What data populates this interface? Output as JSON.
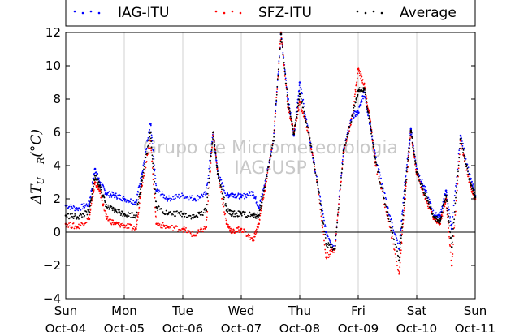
{
  "chart_data": {
    "type": "scatter",
    "ylabel": "ΔT",
    "ylabel_sub": "U − R",
    "ylabel_unit": "(°C)",
    "ylim": [
      -4,
      12
    ],
    "yticks": [
      -4,
      -2,
      0,
      2,
      4,
      6,
      8,
      10,
      12
    ],
    "xlim": [
      0,
      7
    ],
    "xticks": [
      {
        "x": 0,
        "day": "Sun",
        "date": "Oct-04"
      },
      {
        "x": 1,
        "day": "Mon",
        "date": "Oct-05"
      },
      {
        "x": 2,
        "day": "Tue",
        "date": "Oct-06"
      },
      {
        "x": 3,
        "day": "Wed",
        "date": "Oct-07"
      },
      {
        "x": 4,
        "day": "Thu",
        "date": "Oct-08"
      },
      {
        "x": 5,
        "day": "Fri",
        "date": "Oct-09"
      },
      {
        "x": 6,
        "day": "Sat",
        "date": "Oct-10"
      },
      {
        "x": 7,
        "day": "Sun",
        "date": "Oct-11"
      }
    ],
    "grid": "vertical",
    "zero_line": true,
    "legend_position": "top",
    "watermark": [
      "Grupo de Micrometeorologia",
      "IAG-USP"
    ],
    "series": [
      {
        "name": "IAG-ITU",
        "color": "#0000ff",
        "x": [
          0,
          0.2,
          0.4,
          0.5,
          0.58,
          0.7,
          0.85,
          1.0,
          1.2,
          1.3,
          1.45,
          1.55,
          1.75,
          2.0,
          2.2,
          2.4,
          2.52,
          2.6,
          2.75,
          2.85,
          3.0,
          3.2,
          3.3,
          3.4,
          3.55,
          3.68,
          3.8,
          3.9,
          4.0,
          4.15,
          4.3,
          4.45,
          4.6,
          4.75,
          4.9,
          5.0,
          5.1,
          5.2,
          5.3,
          5.5,
          5.7,
          5.8,
          5.9,
          6.0,
          6.15,
          6.3,
          6.4,
          6.5,
          6.6,
          6.75,
          6.9,
          7.0
        ],
        "y": [
          1.6,
          1.4,
          1.7,
          3.8,
          3.0,
          2.3,
          2.2,
          2.0,
          1.8,
          3.5,
          6.5,
          2.5,
          2.0,
          2.2,
          2.0,
          2.3,
          6.0,
          3.5,
          2.2,
          2.3,
          2.1,
          2.4,
          1.5,
          2.8,
          5.5,
          11.9,
          8.0,
          5.8,
          9.0,
          6.0,
          3.0,
          0.0,
          -1.0,
          5.0,
          7.0,
          7.2,
          8.4,
          6.5,
          4.5,
          1.5,
          -1.0,
          3.0,
          6.2,
          3.8,
          2.5,
          1.0,
          1.0,
          2.5,
          0.2,
          5.8,
          3.5,
          2.2
        ]
      },
      {
        "name": "SFZ-ITU",
        "color": "#ff0000",
        "x": [
          0,
          0.2,
          0.4,
          0.5,
          0.58,
          0.7,
          0.85,
          1.0,
          1.2,
          1.3,
          1.45,
          1.55,
          1.75,
          2.0,
          2.2,
          2.4,
          2.52,
          2.6,
          2.75,
          2.85,
          3.0,
          3.2,
          3.3,
          3.4,
          3.55,
          3.68,
          3.8,
          3.9,
          4.0,
          4.15,
          4.3,
          4.45,
          4.6,
          4.75,
          4.9,
          5.0,
          5.1,
          5.2,
          5.3,
          5.5,
          5.7,
          5.8,
          5.9,
          6.0,
          6.15,
          6.3,
          6.4,
          6.5,
          6.6,
          6.75,
          6.9,
          7.0
        ],
        "y": [
          0.5,
          0.3,
          0.8,
          3.0,
          2.5,
          0.8,
          0.5,
          0.4,
          0.2,
          2.8,
          5.5,
          0.5,
          0.3,
          0.2,
          -0.2,
          0.3,
          6.0,
          3.5,
          0.5,
          0.0,
          0.2,
          -0.5,
          0.5,
          2.5,
          5.5,
          12.0,
          7.5,
          6.0,
          7.8,
          6.0,
          3.0,
          -1.5,
          -1.0,
          4.8,
          7.0,
          9.8,
          8.9,
          6.8,
          4.0,
          1.0,
          -2.5,
          2.0,
          6.0,
          3.5,
          2.0,
          0.8,
          0.5,
          2.0,
          -2.0,
          5.5,
          3.0,
          2.0
        ]
      },
      {
        "name": "Average",
        "color": "#000000",
        "x": [
          0,
          0.2,
          0.4,
          0.5,
          0.58,
          0.7,
          0.85,
          1.0,
          1.2,
          1.3,
          1.45,
          1.55,
          1.75,
          2.0,
          2.2,
          2.4,
          2.52,
          2.6,
          2.75,
          2.85,
          3.0,
          3.2,
          3.3,
          3.4,
          3.55,
          3.68,
          3.8,
          3.9,
          4.0,
          4.15,
          4.3,
          4.45,
          4.6,
          4.75,
          4.9,
          5.0,
          5.1,
          5.2,
          5.3,
          5.5,
          5.7,
          5.8,
          5.9,
          6.0,
          6.15,
          6.3,
          6.4,
          6.5,
          6.6,
          6.75,
          6.9,
          7.0
        ],
        "y": [
          1.0,
          0.9,
          1.2,
          3.4,
          2.8,
          1.5,
          1.3,
          1.1,
          1.0,
          3.1,
          6.0,
          1.5,
          1.1,
          1.1,
          0.9,
          1.3,
          6.0,
          3.5,
          1.3,
          1.1,
          1.1,
          1.0,
          1.0,
          2.7,
          5.5,
          11.9,
          7.7,
          5.9,
          8.3,
          6.0,
          3.0,
          -0.7,
          -1.0,
          4.9,
          7.0,
          8.5,
          8.6,
          6.6,
          4.2,
          1.2,
          -1.7,
          2.5,
          6.1,
          3.6,
          2.2,
          0.9,
          0.7,
          2.2,
          -0.9,
          5.6,
          3.2,
          2.1
        ]
      }
    ]
  }
}
